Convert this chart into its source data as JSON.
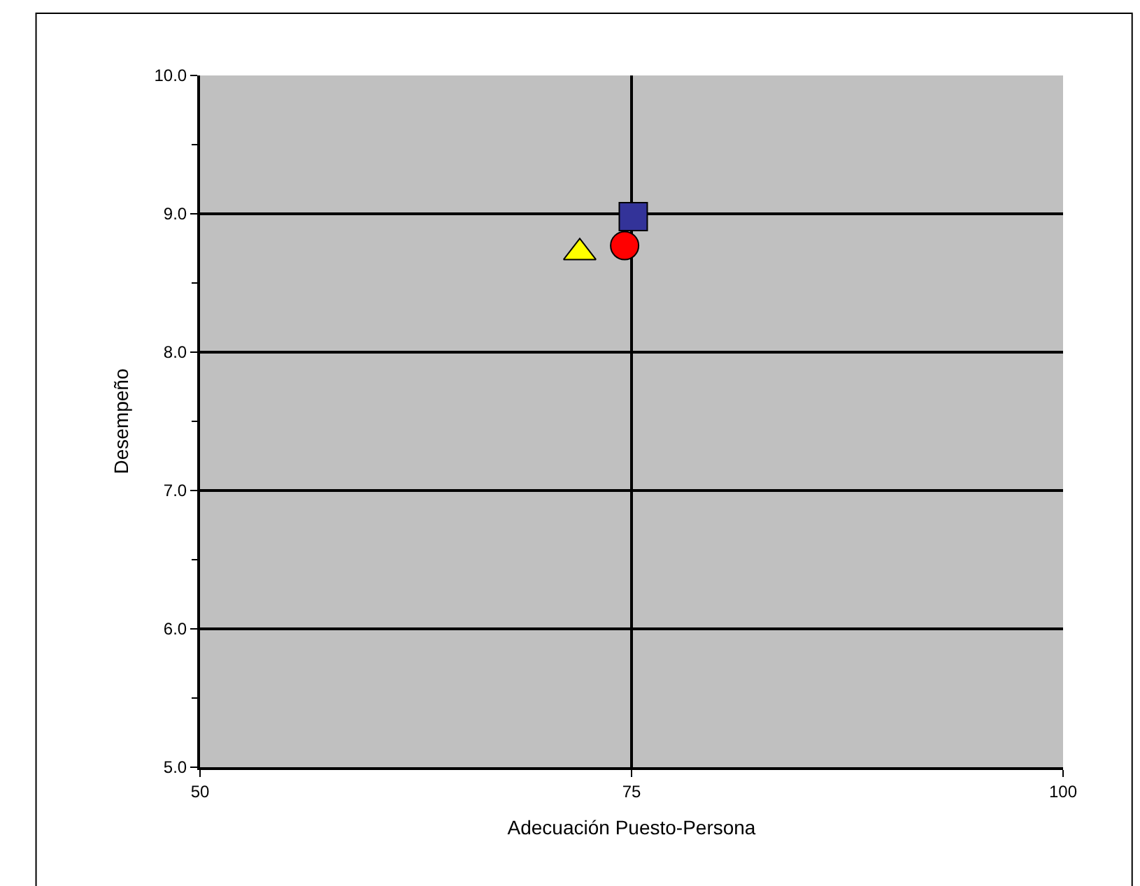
{
  "chart_data": {
    "type": "scatter",
    "xlabel": "Adecuación Puesto-Persona",
    "ylabel": "Desempeño",
    "xlim": [
      50,
      100
    ],
    "xticks": [
      50,
      75,
      100
    ],
    "ylim": [
      5,
      10
    ],
    "yticks": [
      {
        "value": 5,
        "label": "5.0"
      },
      {
        "value": 6,
        "label": "6.0"
      },
      {
        "value": 7,
        "label": "7.0"
      },
      {
        "value": 8,
        "label": "8.0"
      },
      {
        "value": 9,
        "label": "9.0"
      },
      {
        "value": 10,
        "label": "10.0"
      }
    ],
    "grid": true,
    "series": [
      {
        "color": "#333399",
        "marker": "square",
        "x": [
          75.1
        ],
        "values": [
          8.98
        ]
      },
      {
        "color": "#ff0000",
        "marker": "circle",
        "x": [
          74.6
        ],
        "values": [
          8.77
        ]
      },
      {
        "color": "#ffff00",
        "marker": "triangle",
        "x": [
          72.0
        ],
        "values": [
          8.72
        ]
      }
    ]
  }
}
